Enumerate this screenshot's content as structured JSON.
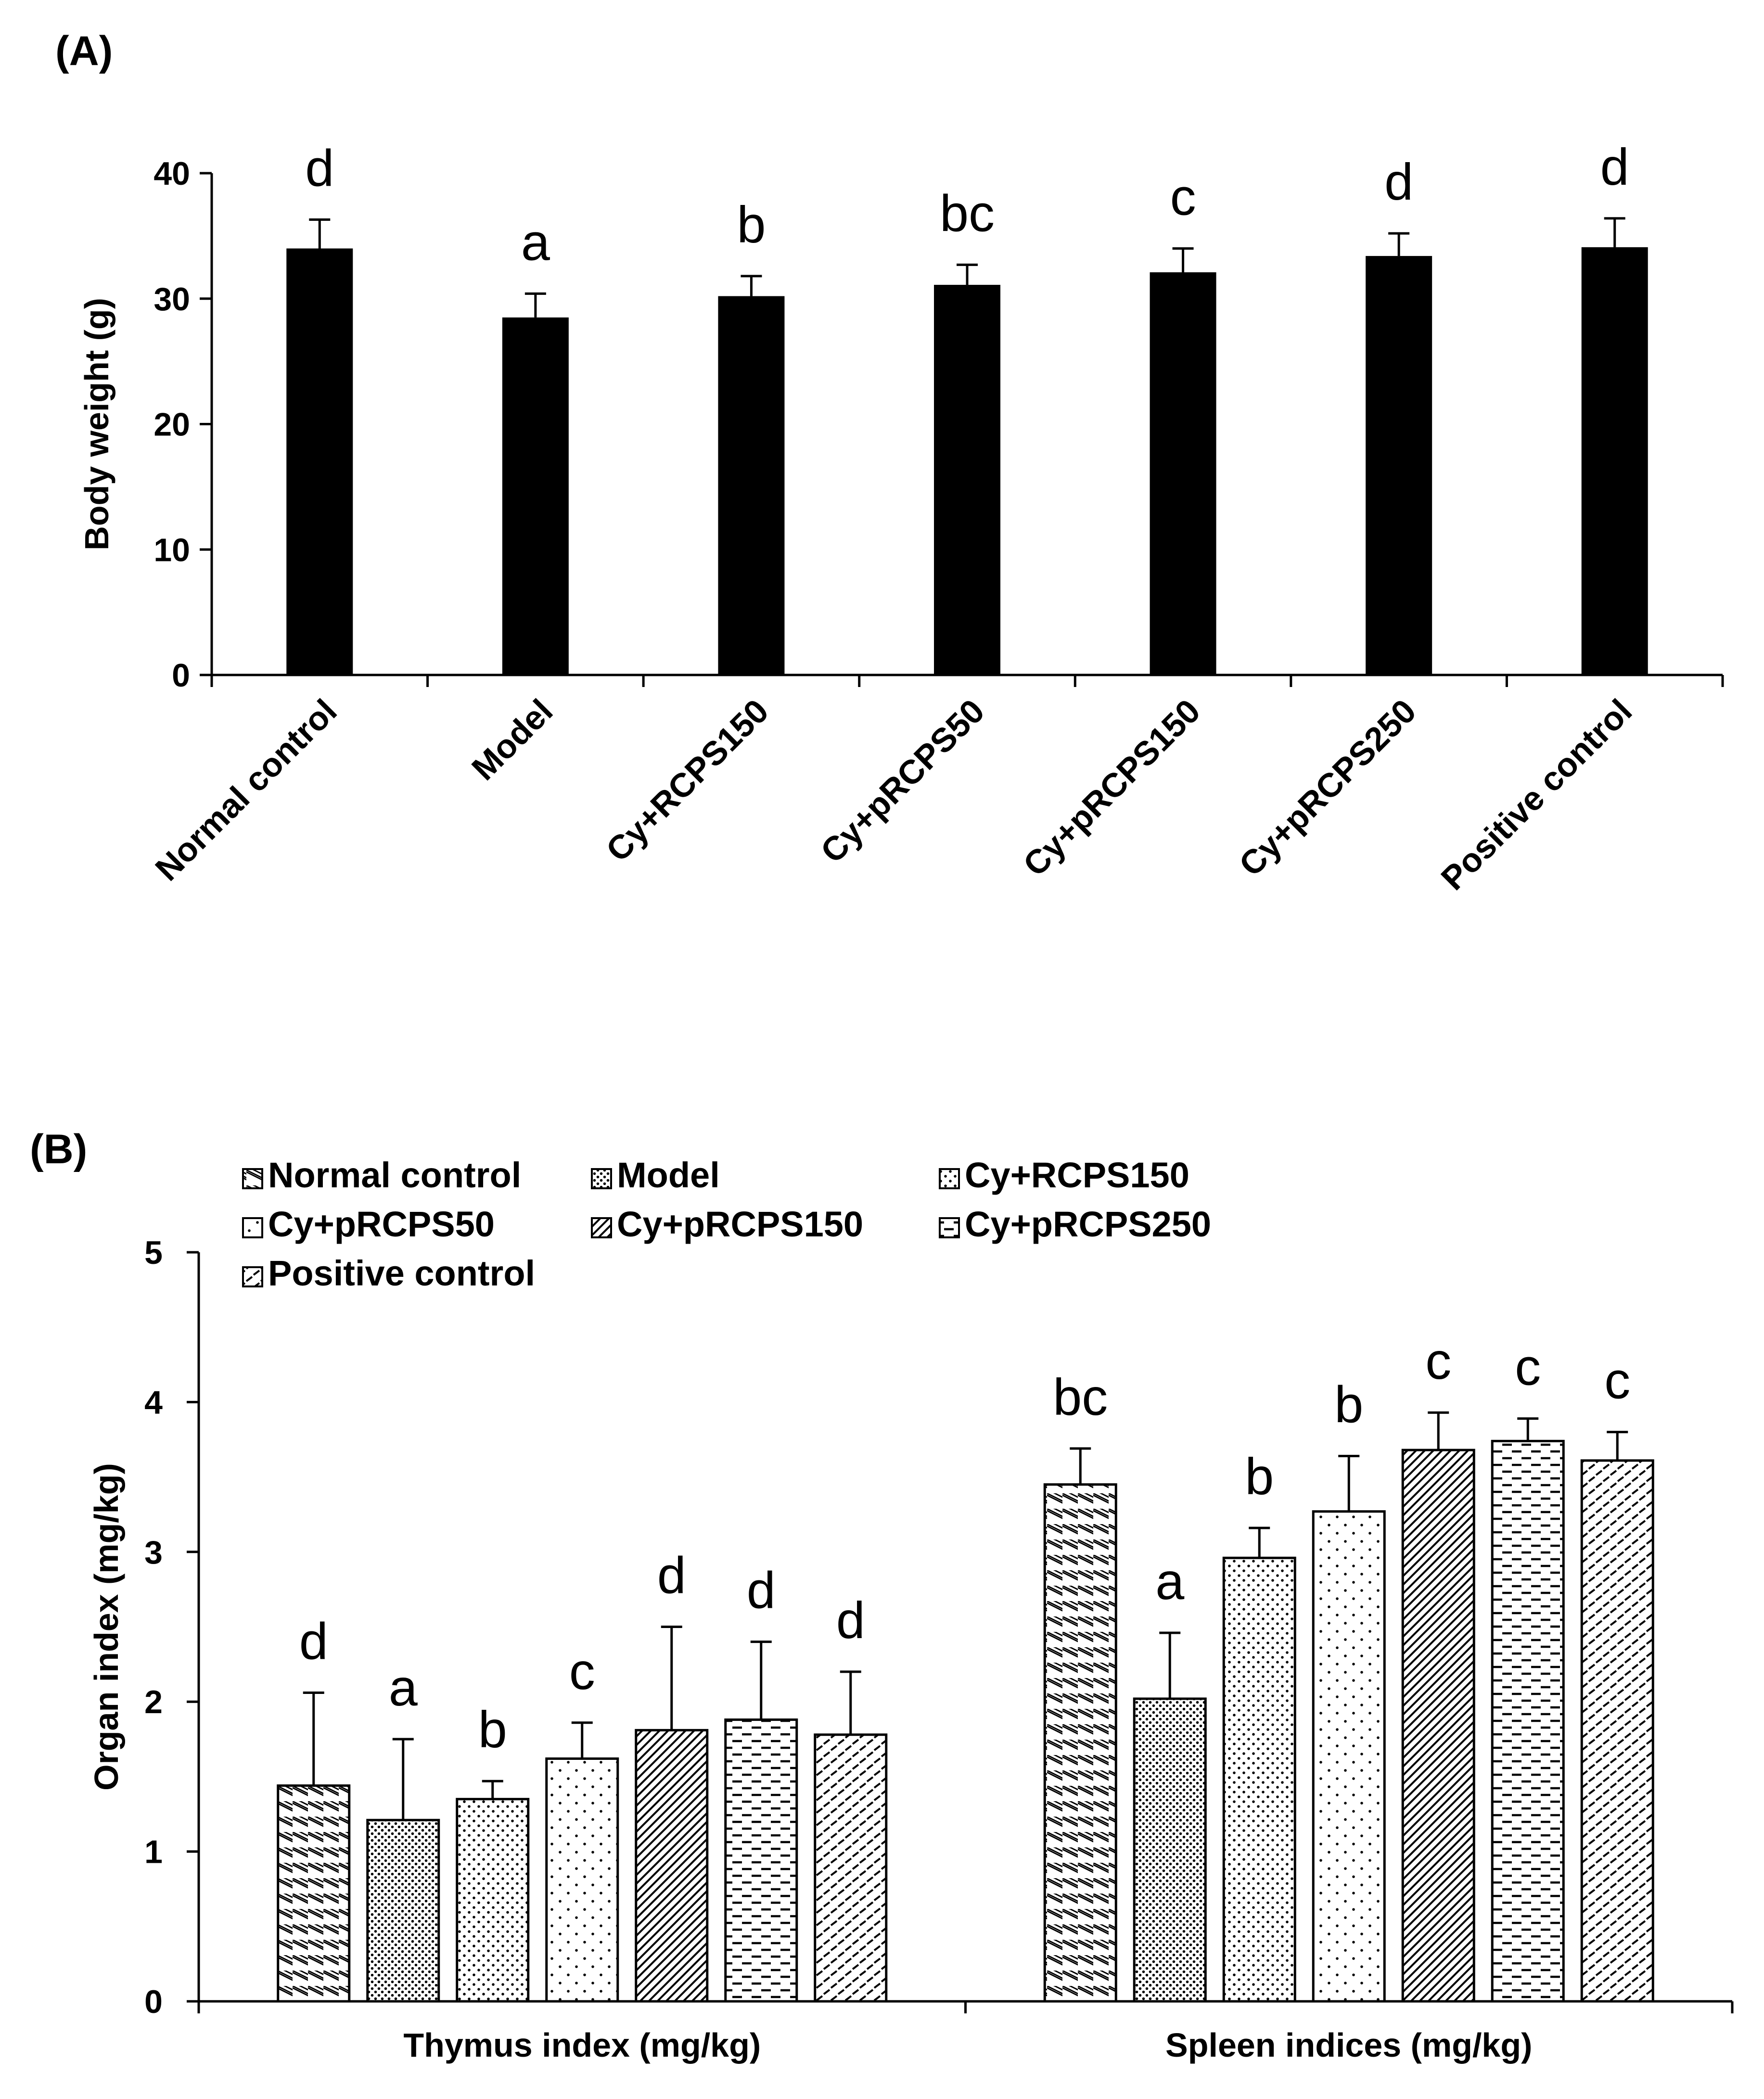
{
  "chart_data": [
    {
      "panel": "(A)",
      "type": "bar",
      "title": "",
      "xlabel": "",
      "ylabel": "Body weight (g)",
      "ylim": [
        0,
        40
      ],
      "yticks": [
        0,
        10,
        20,
        30,
        40
      ],
      "categories": [
        "Normal control",
        "Model",
        "Cy+RCPS150",
        "Cy+pRCPS50",
        "Cy+pRCPS150",
        "Cy+pRCPS250",
        "Positive control"
      ],
      "values": [
        34.0,
        28.5,
        30.2,
        31.1,
        32.1,
        33.4,
        34.1
      ],
      "errors": [
        2.3,
        1.9,
        1.6,
        1.6,
        1.9,
        1.8,
        2.3
      ],
      "significance": [
        "d",
        "a",
        "b",
        "bc",
        "c",
        "d",
        "d"
      ],
      "bar_color": "#000000"
    },
    {
      "panel": "(B)",
      "type": "bar",
      "title": "",
      "xlabel": "",
      "ylabel": "Organ index (mg/kg)",
      "ylim": [
        0,
        5
      ],
      "yticks": [
        0,
        1,
        2,
        3,
        4,
        5
      ],
      "legend_position": "top-left",
      "categories": [
        "Thymus index (mg/kg)",
        "Spleen indices (mg/kg)"
      ],
      "series": [
        {
          "name": "Normal control",
          "pattern": "backslash-hatch",
          "values": [
            1.44,
            3.45
          ],
          "errors": [
            0.62,
            0.24
          ],
          "significance": [
            "d",
            "bc"
          ]
        },
        {
          "name": "Model",
          "pattern": "dense-dots",
          "values": [
            1.21,
            2.02
          ],
          "errors": [
            0.54,
            0.44
          ],
          "significance": [
            "a",
            "a"
          ]
        },
        {
          "name": "Cy+RCPS150",
          "pattern": "medium-dots",
          "values": [
            1.35,
            2.96
          ],
          "errors": [
            0.12,
            0.2
          ],
          "significance": [
            "b",
            "b"
          ]
        },
        {
          "name": "Cy+pRCPS50",
          "pattern": "sparse-dots",
          "values": [
            1.62,
            3.27
          ],
          "errors": [
            0.24,
            0.37
          ],
          "significance": [
            "c",
            "b"
          ]
        },
        {
          "name": "Cy+pRCPS150",
          "pattern": "forward-hatch",
          "values": [
            1.81,
            3.68
          ],
          "errors": [
            0.69,
            0.25
          ],
          "significance": [
            "d",
            "c"
          ]
        },
        {
          "name": "Cy+pRCPS250",
          "pattern": "dashed-horizontal",
          "values": [
            1.88,
            3.74
          ],
          "errors": [
            0.52,
            0.15
          ],
          "significance": [
            "d",
            "c"
          ]
        },
        {
          "name": "Positive control",
          "pattern": "short-forward-dash",
          "values": [
            1.78,
            3.61
          ],
          "errors": [
            0.42,
            0.19
          ],
          "significance": [
            "d",
            "c"
          ]
        }
      ]
    }
  ]
}
